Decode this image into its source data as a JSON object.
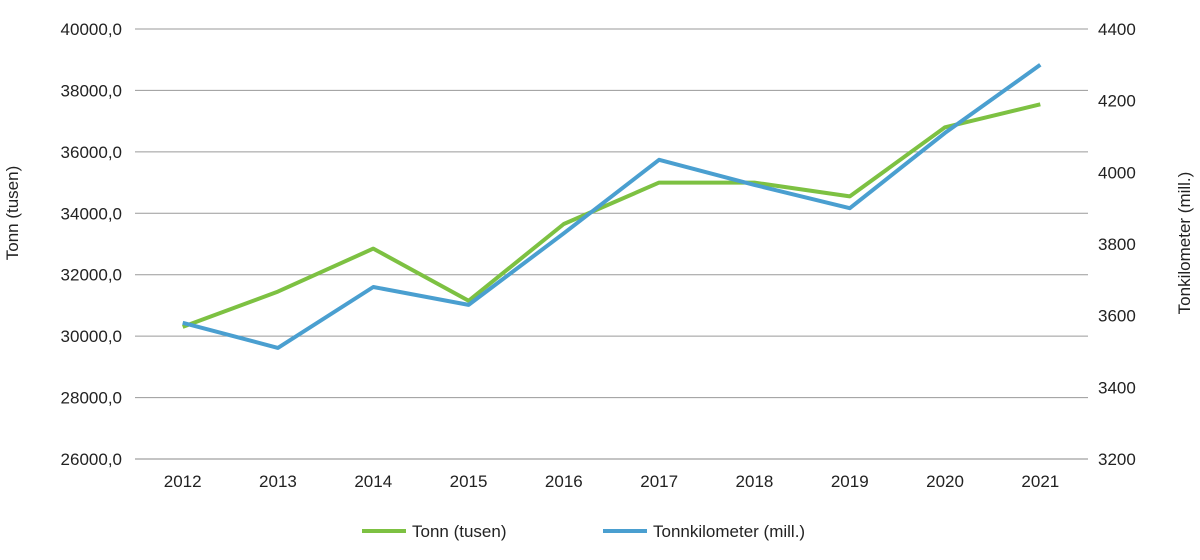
{
  "chart_data": {
    "type": "line",
    "title": "",
    "categories": [
      "2012",
      "2013",
      "2014",
      "2015",
      "2016",
      "2017",
      "2018",
      "2019",
      "2020",
      "2021"
    ],
    "ylabel_left": "Tonn (tusen)",
    "ylabel_right": "Tonkilometer (mill.)",
    "ylim_left": [
      26000,
      40000
    ],
    "ylim_right": [
      3200,
      4400
    ],
    "yticks_left": [
      "26000,0",
      "28000,0",
      "30000,0",
      "32000,0",
      "34000,0",
      "36000,0",
      "38000,0",
      "40000,0"
    ],
    "yticks_right": [
      "3200",
      "3400",
      "3600",
      "3800",
      "4000",
      "4200",
      "4400"
    ],
    "grid": true,
    "series": [
      {
        "name": "Tonn (tusen)",
        "axis": "left",
        "color": "#7dc142",
        "values": [
          30300,
          31450,
          32850,
          31150,
          33650,
          35000,
          35000,
          34550,
          36800,
          37550
        ]
      },
      {
        "name": "Tonnkilometer (mill.)",
        "axis": "right",
        "color": "#4a9fd0",
        "values": [
          3580,
          3510,
          3680,
          3630,
          3830,
          4035,
          3965,
          3900,
          4110,
          4300
        ]
      }
    ],
    "legend": {
      "position": "bottom"
    }
  }
}
